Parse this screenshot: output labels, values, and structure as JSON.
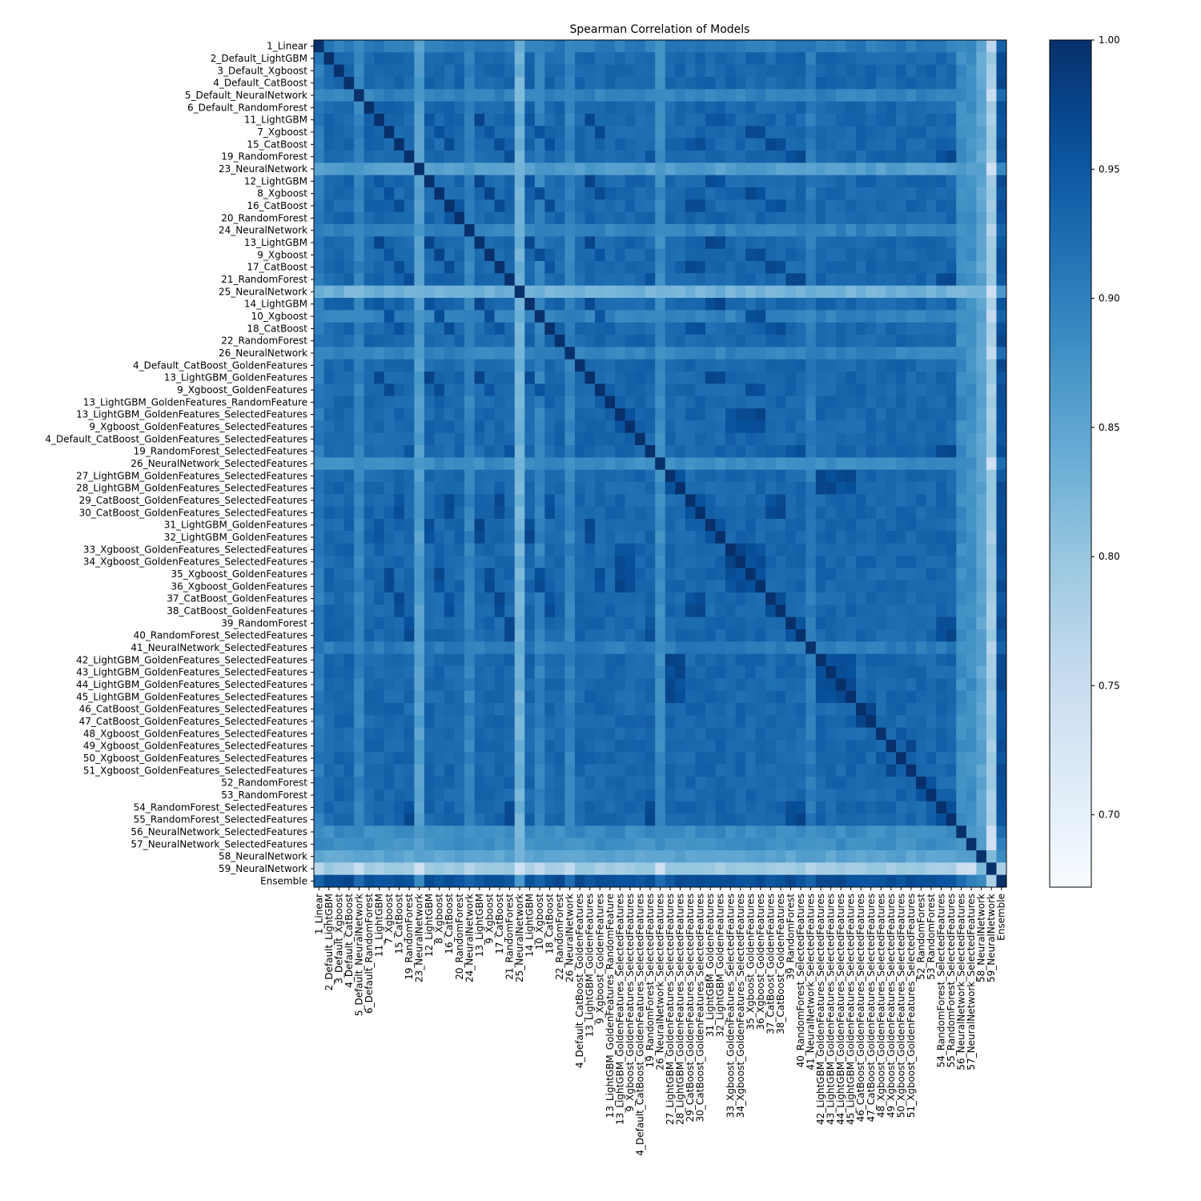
{
  "chart_data": {
    "type": "heatmap",
    "title": "Spearman Correlation of Models",
    "xlabel": "",
    "ylabel": "",
    "labels": [
      "1_Linear",
      "2_Default_LightGBM",
      "3_Default_Xgboost",
      "4_Default_CatBoost",
      "5_Default_NeuralNetwork",
      "6_Default_RandomForest",
      "11_LightGBM",
      "7_Xgboost",
      "15_CatBoost",
      "19_RandomForest",
      "23_NeuralNetwork",
      "12_LightGBM",
      "8_Xgboost",
      "16_CatBoost",
      "20_RandomForest",
      "24_NeuralNetwork",
      "13_LightGBM",
      "9_Xgboost",
      "17_CatBoost",
      "21_RandomForest",
      "25_NeuralNetwork",
      "14_LightGBM",
      "10_Xgboost",
      "18_CatBoost",
      "22_RandomForest",
      "26_NeuralNetwork",
      "4_Default_CatBoost_GoldenFeatures",
      "13_LightGBM_GoldenFeatures",
      "9_Xgboost_GoldenFeatures",
      "13_LightGBM_GoldenFeatures_RandomFeature",
      "13_LightGBM_GoldenFeatures_SelectedFeatures",
      "9_Xgboost_GoldenFeatures_SelectedFeatures",
      "4_Default_CatBoost_GoldenFeatures_SelectedFeatures",
      "19_RandomForest_SelectedFeatures",
      "26_NeuralNetwork_SelectedFeatures",
      "27_LightGBM_GoldenFeatures_SelectedFeatures",
      "28_LightGBM_GoldenFeatures_SelectedFeatures",
      "29_CatBoost_GoldenFeatures_SelectedFeatures",
      "30_CatBoost_GoldenFeatures_SelectedFeatures",
      "31_LightGBM_GoldenFeatures",
      "32_LightGBM_GoldenFeatures",
      "33_Xgboost_GoldenFeatures_SelectedFeatures",
      "34_Xgboost_GoldenFeatures_SelectedFeatures",
      "35_Xgboost_GoldenFeatures",
      "36_Xgboost_GoldenFeatures",
      "37_CatBoost_GoldenFeatures",
      "38_CatBoost_GoldenFeatures",
      "39_RandomForest",
      "40_RandomForest_SelectedFeatures",
      "41_NeuralNetwork_SelectedFeatures",
      "42_LightGBM_GoldenFeatures_SelectedFeatures",
      "43_LightGBM_GoldenFeatures_SelectedFeatures",
      "44_LightGBM_GoldenFeatures_SelectedFeatures",
      "45_LightGBM_GoldenFeatures_SelectedFeatures",
      "46_CatBoost_GoldenFeatures_SelectedFeatures",
      "47_CatBoost_GoldenFeatures_SelectedFeatures",
      "48_Xgboost_GoldenFeatures_SelectedFeatures",
      "49_Xgboost_GoldenFeatures_SelectedFeatures",
      "50_Xgboost_GoldenFeatures_SelectedFeatures",
      "51_Xgboost_GoldenFeatures_SelectedFeatures",
      "52_RandomForest",
      "53_RandomForest",
      "54_RandomForest_SelectedFeatures",
      "55_RandomForest_SelectedFeatures",
      "56_NeuralNetwork_SelectedFeatures",
      "57_NeuralNetwork_SelectedFeatures",
      "58_NeuralNetwork",
      "59_NeuralNetwork",
      "Ensemble"
    ],
    "colorbar": {
      "vmin": 0.672,
      "vmax": 1.0,
      "ticks": [
        0.7,
        0.75,
        0.8,
        0.85,
        0.9,
        0.95,
        1.0
      ],
      "tick_labels": [
        "0.70",
        "0.75",
        "0.80",
        "0.85",
        "0.90",
        "0.95",
        "1.00"
      ],
      "colormap": "Blues"
    },
    "grid": false
  }
}
